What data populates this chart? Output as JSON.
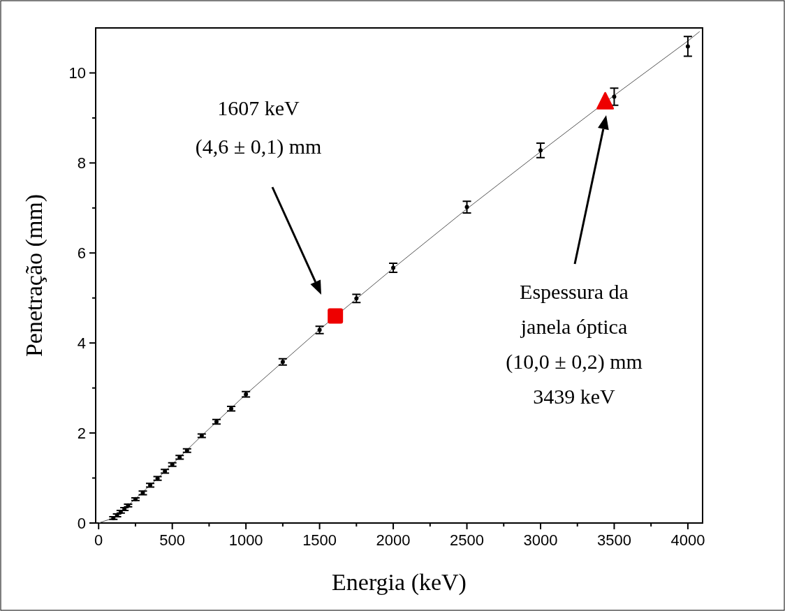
{
  "chart_data": {
    "type": "scatter",
    "xlabel": "Energia (keV)",
    "ylabel": "Penetração (mm)",
    "xlim": [
      -20,
      4100
    ],
    "ylim": [
      0,
      11
    ],
    "xticks": [
      0,
      {
        "value": 250,
        "label": null
      },
      500,
      {
        "value": 750,
        "label": null
      },
      1000,
      {
        "value": 1250,
        "label": null
      },
      1500,
      {
        "value": 1750,
        "label": null
      },
      2000,
      {
        "value": 2250,
        "label": null
      },
      2500,
      {
        "value": 2750,
        "label": null
      },
      3000,
      {
        "value": 3250,
        "label": null
      },
      3500,
      {
        "value": 3750,
        "label": null
      },
      4000
    ],
    "yticks": [
      0,
      {
        "value": 1,
        "label": null
      },
      2,
      {
        "value": 3,
        "label": null
      },
      4,
      {
        "value": 5,
        "label": null
      },
      6,
      {
        "value": 7,
        "label": null
      },
      8,
      {
        "value": 9,
        "label": null
      },
      10
    ],
    "grid": false,
    "series": [
      {
        "type": "line",
        "color": "#555555",
        "line_style": "solid",
        "marker": "none",
        "x": [
          0,
          100,
          200,
          400,
          700,
          1000,
          1500,
          2000,
          2500,
          3000,
          3500,
          4000,
          4080
        ],
        "values": [
          0,
          0.11,
          0.39,
          0.99,
          1.94,
          2.86,
          4.3,
          5.66,
          6.98,
          8.25,
          9.5,
          10.71,
          10.92
        ]
      },
      {
        "color": "#000000",
        "marker": "circle",
        "x": [
          100,
          125,
          150,
          175,
          200,
          250,
          300,
          350,
          400,
          450,
          500,
          550,
          600,
          700,
          800,
          900,
          1000,
          1250,
          1500,
          1750,
          2000,
          2500,
          3000,
          3500,
          4000
        ],
        "values": [
          0.11,
          0.17,
          0.25,
          0.31,
          0.39,
          0.53,
          0.67,
          0.84,
          0.99,
          1.15,
          1.3,
          1.46,
          1.61,
          1.94,
          2.25,
          2.54,
          2.86,
          3.58,
          4.29,
          4.99,
          5.67,
          7.02,
          8.28,
          9.47,
          10.59
        ],
        "errors": [
          0.03,
          0.03,
          0.03,
          0.03,
          0.03,
          0.03,
          0.04,
          0.04,
          0.04,
          0.04,
          0.04,
          0.04,
          0.04,
          0.04,
          0.05,
          0.05,
          0.06,
          0.07,
          0.08,
          0.09,
          0.1,
          0.13,
          0.16,
          0.19,
          0.22
        ]
      },
      {
        "color": "#ee0000",
        "marker": "square",
        "x": [
          1607
        ],
        "values": [
          4.6
        ]
      },
      {
        "color": "#ee0000",
        "marker": "triangle",
        "x": [
          3439
        ],
        "values": [
          9.35
        ]
      }
    ],
    "annotations": [
      "1607 keV\n(4,6 ± 0,1) mm",
      "Espessura da\njanela óptica\n(10,0 ± 0,2) mm\n3439 keV"
    ]
  }
}
